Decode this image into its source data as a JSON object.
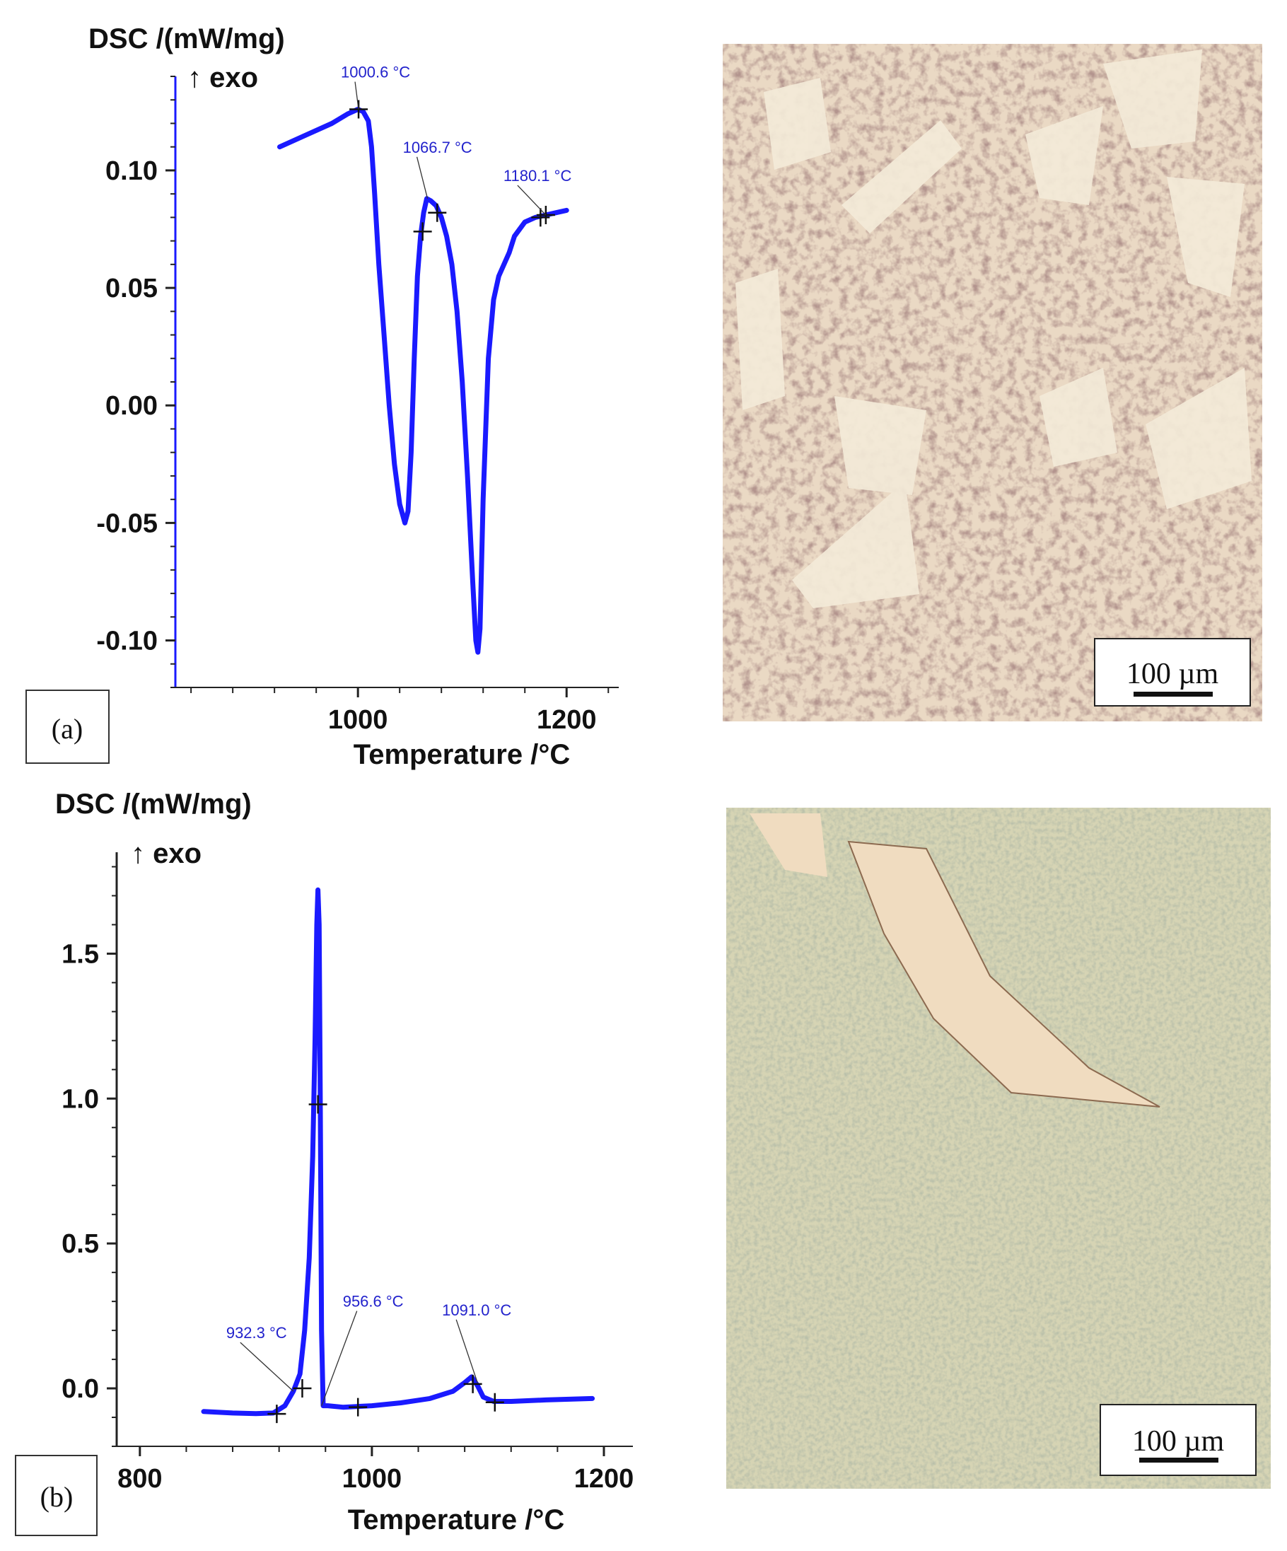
{
  "chart_data": [
    {
      "type": "line",
      "panel_label": "(a)",
      "ylabel": "DSC /(mW/mg)",
      "ylabel_direction": "↑ exo",
      "xlabel": "Temperature /°C",
      "x_ticks": [
        1000,
        1200
      ],
      "y_ticks": [
        {
          "value": 0.1,
          "label": "0.10"
        },
        {
          "value": 0.05,
          "label": "0.05"
        },
        {
          "value": 0.0,
          "label": "0.00"
        },
        {
          "value": -0.05,
          "label": "-0.05"
        },
        {
          "value": -0.1,
          "label": "-0.10"
        }
      ],
      "xlim": [
        825,
        1250
      ],
      "ylim": [
        -0.12,
        0.14
      ],
      "line_color": "#1a1aff",
      "series": [
        {
          "x": [
            925,
            950,
            975,
            990,
            1000,
            1005,
            1010,
            1013,
            1016,
            1020,
            1025,
            1030,
            1035,
            1040,
            1045,
            1048,
            1051,
            1054,
            1057,
            1060,
            1063,
            1066,
            1070,
            1075,
            1080,
            1085,
            1090,
            1095,
            1100,
            1105,
            1110,
            1113,
            1115,
            1117,
            1120,
            1125,
            1130,
            1135,
            1140,
            1145,
            1150,
            1160,
            1170,
            1180,
            1190,
            1200
          ],
          "y": [
            0.11,
            0.115,
            0.12,
            0.124,
            0.126,
            0.125,
            0.121,
            0.11,
            0.09,
            0.06,
            0.03,
            0.0,
            -0.025,
            -0.042,
            -0.05,
            -0.045,
            -0.02,
            0.02,
            0.055,
            0.072,
            0.082,
            0.088,
            0.087,
            0.085,
            0.08,
            0.072,
            0.06,
            0.04,
            0.01,
            -0.03,
            -0.075,
            -0.1,
            -0.105,
            -0.095,
            -0.04,
            0.02,
            0.045,
            0.055,
            0.06,
            0.065,
            0.072,
            0.078,
            0.08,
            0.081,
            0.082,
            0.083
          ]
        }
      ],
      "markers": [
        {
          "x": 1000.6,
          "y": 0.126
        },
        {
          "x": 1062,
          "y": 0.074
        },
        {
          "x": 1076,
          "y": 0.082
        },
        {
          "x": 1175,
          "y": 0.08
        },
        {
          "x": 1180.1,
          "y": 0.081
        }
      ],
      "annotations": [
        {
          "text": "1000.6 °C",
          "x": 1000.6,
          "y": 0.126
        },
        {
          "text": "1066.7 °C",
          "x": 1066.7,
          "y": 0.088
        },
        {
          "text": "1180.1 °C",
          "x": 1180.1,
          "y": 0.081
        }
      ]
    },
    {
      "type": "line",
      "panel_label": "(b)",
      "ylabel": "DSC /(mW/mg)",
      "ylabel_direction": "↑ exo",
      "xlabel": "Temperature /°C",
      "x_ticks": [
        800,
        1000,
        1200
      ],
      "y_ticks": [
        {
          "value": 1.5,
          "label": "1.5"
        },
        {
          "value": 1.0,
          "label": "1.0"
        },
        {
          "value": 0.5,
          "label": "0.5"
        },
        {
          "value": 0.0,
          "label": "0.0"
        }
      ],
      "xlim": [
        780,
        1225
      ],
      "ylim": [
        -0.2,
        1.85
      ],
      "line_color": "#1a1aff",
      "series": [
        {
          "x": [
            855,
            880,
            900,
            915,
            925,
            932.3,
            938,
            942,
            946,
            949,
            951,
            952.5,
            953.5,
            954.5,
            955.5,
            956.6,
            958,
            962,
            975,
            1000,
            1025,
            1050,
            1070,
            1080,
            1086,
            1091,
            1096,
            1105,
            1120,
            1150,
            1190
          ],
          "y": [
            -0.08,
            -0.085,
            -0.087,
            -0.085,
            -0.06,
            -0.01,
            0.05,
            0.2,
            0.45,
            0.8,
            1.2,
            1.6,
            1.72,
            1.6,
            1.0,
            0.2,
            -0.06,
            -0.06,
            -0.065,
            -0.06,
            -0.05,
            -0.035,
            -0.01,
            0.02,
            0.04,
            0.01,
            -0.03,
            -0.045,
            -0.045,
            -0.04,
            -0.035
          ]
        }
      ],
      "markers": [
        {
          "x": 918,
          "y": -0.088
        },
        {
          "x": 940,
          "y": 0.0
        },
        {
          "x": 953.5,
          "y": 0.98
        },
        {
          "x": 988,
          "y": -0.065
        },
        {
          "x": 1087,
          "y": 0.015
        },
        {
          "x": 1106,
          "y": -0.048
        }
      ],
      "annotations": [
        {
          "text": "932.3 °C",
          "x": 932.3,
          "y": -0.01
        },
        {
          "text": "956.6 °C",
          "x": 956.6,
          "y": -0.06
        },
        {
          "text": "1091.0 °C",
          "x": 1091.0,
          "y": 0.02
        }
      ]
    }
  ],
  "micrographs": [
    {
      "scale_bar": "100 µm"
    },
    {
      "scale_bar": "100 µm"
    }
  ]
}
